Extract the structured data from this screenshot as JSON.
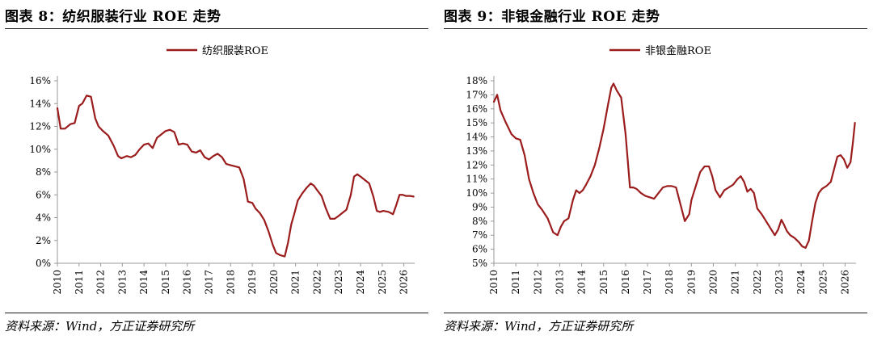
{
  "charts": [
    {
      "title": "图表 8：纺织服装行业 ROE 走势",
      "source": "资料来源：Wind，方正证券研究所",
      "chart_data": {
        "type": "line",
        "title": "图表 8：纺织服装行业 ROE 走势",
        "xlabel": "",
        "ylabel": "",
        "x_ticks": [
          "2010",
          "2011",
          "2012",
          "2013",
          "2014",
          "2015",
          "2016",
          "2017",
          "2018",
          "2019",
          "2020",
          "2021",
          "2022",
          "2023",
          "2024",
          "2025",
          "2026"
        ],
        "y_ticks": [
          "0%",
          "2%",
          "4%",
          "6%",
          "8%",
          "10%",
          "12%",
          "14%",
          "16%"
        ],
        "x_range": [
          2010,
          2026.5
        ],
        "ylim": [
          0,
          16
        ],
        "grid": false,
        "legend_position": "top-center",
        "color": "#9b1c1c",
        "series": [
          {
            "name": "纺织服装ROE",
            "x": [
              2010.0,
              2010.15,
              2010.35,
              2010.6,
              2010.8,
              2011.0,
              2011.15,
              2011.35,
              2011.55,
              2011.75,
              2011.9,
              2012.1,
              2012.35,
              2012.6,
              2012.8,
              2012.95,
              2013.2,
              2013.4,
              2013.6,
              2013.8,
              2014.0,
              2014.2,
              2014.4,
              2014.6,
              2014.8,
              2015.0,
              2015.2,
              2015.4,
              2015.6,
              2015.8,
              2016.0,
              2016.2,
              2016.4,
              2016.6,
              2016.8,
              2017.0,
              2017.2,
              2017.4,
              2017.6,
              2017.8,
              2018.0,
              2018.2,
              2018.4,
              2018.6,
              2018.8,
              2019.0,
              2019.15,
              2019.35,
              2019.55,
              2019.75,
              2019.95,
              2020.1,
              2020.3,
              2020.5,
              2020.65,
              2020.8,
              2020.95,
              2021.1,
              2021.3,
              2021.5,
              2021.7,
              2021.85,
              2022.0,
              2022.2,
              2022.4,
              2022.6,
              2022.8,
              2022.95,
              2023.15,
              2023.35,
              2023.55,
              2023.7,
              2023.85,
              2024.0,
              2024.2,
              2024.4,
              2024.6,
              2024.75,
              2024.9,
              2025.05,
              2025.3,
              2025.5,
              2025.65,
              2025.8,
              2025.95,
              2026.1,
              2026.3,
              2026.45
            ],
            "y": [
              13.6,
              11.8,
              11.8,
              12.2,
              12.3,
              13.8,
              14.0,
              14.7,
              14.6,
              12.7,
              12.0,
              11.6,
              11.2,
              10.3,
              9.4,
              9.2,
              9.4,
              9.3,
              9.5,
              10.0,
              10.4,
              10.5,
              10.1,
              11.0,
              11.3,
              11.6,
              11.7,
              11.5,
              10.4,
              10.5,
              10.4,
              9.8,
              9.7,
              9.9,
              9.3,
              9.1,
              9.4,
              9.6,
              9.3,
              8.7,
              8.6,
              8.5,
              8.4,
              7.4,
              5.4,
              5.3,
              4.8,
              4.4,
              3.8,
              2.8,
              1.6,
              0.9,
              0.7,
              0.6,
              1.8,
              3.4,
              4.4,
              5.5,
              6.1,
              6.6,
              7.0,
              6.8,
              6.4,
              5.9,
              4.8,
              3.9,
              3.9,
              4.1,
              4.4,
              4.7,
              6.0,
              7.6,
              7.8,
              7.6,
              7.3,
              7.0,
              5.8,
              4.6,
              4.5,
              4.6,
              4.5,
              4.3,
              5.1,
              6.0,
              6.0,
              5.9,
              5.9,
              5.85
            ]
          }
        ]
      }
    },
    {
      "title": "图表 9：非银金融行业 ROE 走势",
      "source": "资料来源：Wind，方正证券研究所",
      "chart_data": {
        "type": "line",
        "title": "图表 9：非银金融行业 ROE 走势",
        "xlabel": "",
        "ylabel": "",
        "x_ticks": [
          "2010",
          "2011",
          "2012",
          "2013",
          "2014",
          "2015",
          "2016",
          "2017",
          "2018",
          "2019",
          "2020",
          "2021",
          "2022",
          "2023",
          "2024",
          "2025",
          "2026"
        ],
        "y_ticks": [
          "5%",
          "6%",
          "7%",
          "8%",
          "9%",
          "10%",
          "11%",
          "12%",
          "13%",
          "14%",
          "15%",
          "16%",
          "17%",
          "18%"
        ],
        "x_range": [
          2010,
          2026.5
        ],
        "ylim": [
          5,
          18
        ],
        "grid": false,
        "legend_position": "top-center",
        "color": "#9b1c1c",
        "series": [
          {
            "name": "非银金融ROE",
            "x": [
              2010.0,
              2010.15,
              2010.3,
              2010.55,
              2010.8,
              2011.0,
              2011.2,
              2011.4,
              2011.6,
              2011.8,
              2012.0,
              2012.2,
              2012.45,
              2012.7,
              2012.9,
              2013.05,
              2013.2,
              2013.4,
              2013.6,
              2013.75,
              2013.9,
              2014.05,
              2014.2,
              2014.4,
              2014.6,
              2014.8,
              2015.0,
              2015.2,
              2015.35,
              2015.45,
              2015.6,
              2015.8,
              2016.0,
              2016.2,
              2016.35,
              2016.5,
              2016.7,
              2016.9,
              2017.1,
              2017.3,
              2017.5,
              2017.7,
              2017.9,
              2018.1,
              2018.3,
              2018.5,
              2018.7,
              2018.9,
              2019.0,
              2019.2,
              2019.4,
              2019.6,
              2019.8,
              2019.95,
              2020.1,
              2020.3,
              2020.5,
              2020.7,
              2020.9,
              2021.1,
              2021.25,
              2021.4,
              2021.55,
              2021.7,
              2021.85,
              2022.0,
              2022.2,
              2022.4,
              2022.6,
              2022.8,
              2022.95,
              2023.1,
              2023.2,
              2023.35,
              2023.5,
              2023.7,
              2023.9,
              2024.05,
              2024.2,
              2024.35,
              2024.5,
              2024.65,
              2024.8,
              2024.95,
              2025.15,
              2025.35,
              2025.5,
              2025.65,
              2025.8,
              2025.95,
              2026.1,
              2026.25,
              2026.35,
              2026.45
            ],
            "y": [
              16.5,
              17.0,
              15.9,
              15.0,
              14.2,
              13.9,
              13.8,
              12.7,
              11.0,
              10.0,
              9.2,
              8.8,
              8.2,
              7.2,
              7.0,
              7.6,
              8.0,
              8.2,
              9.5,
              10.2,
              10.0,
              10.2,
              10.6,
              11.2,
              12.0,
              13.2,
              14.6,
              16.3,
              17.5,
              17.8,
              17.3,
              16.8,
              14.2,
              10.4,
              10.4,
              10.3,
              10.0,
              9.8,
              9.7,
              9.6,
              10.0,
              10.4,
              10.5,
              10.5,
              10.4,
              9.2,
              8.0,
              8.5,
              9.5,
              10.5,
              11.5,
              11.9,
              11.9,
              11.2,
              10.2,
              9.7,
              10.2,
              10.4,
              10.6,
              11.0,
              11.2,
              10.8,
              10.1,
              10.3,
              10.0,
              8.9,
              8.5,
              8.0,
              7.5,
              7.0,
              7.4,
              8.1,
              7.8,
              7.3,
              7.0,
              6.8,
              6.5,
              6.2,
              6.1,
              6.6,
              8.0,
              9.3,
              10.0,
              10.3,
              10.5,
              10.8,
              11.7,
              12.6,
              12.7,
              12.4,
              11.8,
              12.2,
              13.5,
              15.0
            ]
          }
        ]
      }
    }
  ]
}
